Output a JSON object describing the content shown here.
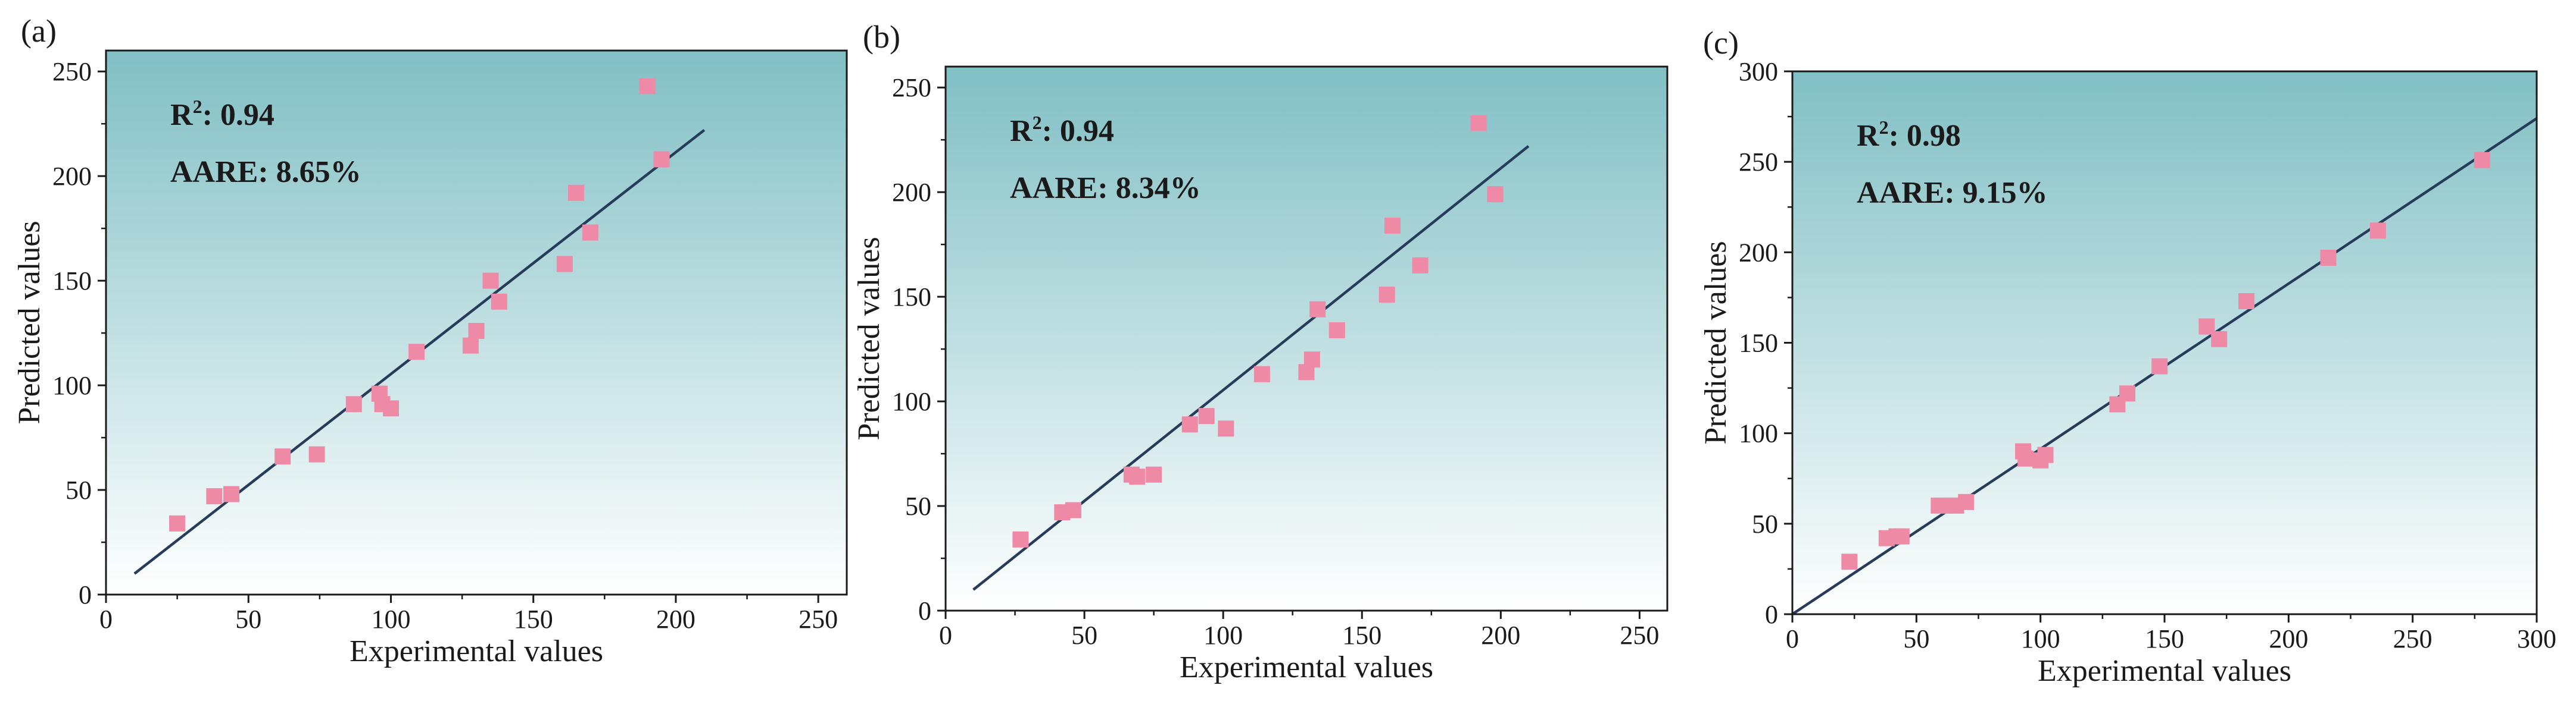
{
  "chart_data": [
    {
      "type": "scatter",
      "panel": "(a)",
      "xlabel": "Experimental values",
      "ylabel": "Predicted values",
      "xlim": [
        0,
        260
      ],
      "ylim": [
        0,
        260
      ],
      "xticks": [
        "0",
        "50",
        "100",
        "150",
        "200",
        "250"
      ],
      "yticks": [
        "0",
        "50",
        "100",
        "150",
        "200",
        "250"
      ],
      "annotations": {
        "r2_label": "R",
        "r2_value": "0.94",
        "aare": "AARE: 8.65%"
      },
      "fit_line": {
        "x": [
          10,
          210
        ],
        "y": [
          10,
          222
        ]
      },
      "series": [
        {
          "name": "data",
          "x": [
            25,
            38,
            44,
            62,
            74,
            87,
            96,
            97,
            100,
            109,
            128,
            130,
            135,
            138,
            161,
            165,
            170,
            190,
            195
          ],
          "y": [
            34,
            47,
            48,
            66,
            67,
            91,
            96,
            91,
            89,
            116,
            119,
            126,
            150,
            140,
            158,
            192,
            173,
            243,
            208
          ]
        }
      ]
    },
    {
      "type": "scatter",
      "panel": "(b)",
      "xlabel": "Experimental values",
      "ylabel": "Predicted values",
      "xlim": [
        0,
        260
      ],
      "ylim": [
        0,
        260
      ],
      "xticks": [
        "0",
        "50",
        "100",
        "150",
        "200",
        "250"
      ],
      "yticks": [
        "0",
        "50",
        "100",
        "150",
        "200",
        "250"
      ],
      "annotations": {
        "r2_label": "R",
        "r2_value": "0.94",
        "aare": "AARE: 8.34%"
      },
      "fit_line": {
        "x": [
          10,
          210
        ],
        "y": [
          10,
          222
        ]
      },
      "series": [
        {
          "name": "data",
          "x": [
            27,
            42,
            46,
            67,
            69,
            75,
            88,
            94,
            101,
            114,
            130,
            132,
            134,
            141,
            159,
            161,
            171,
            192,
            198
          ],
          "y": [
            34,
            47,
            48,
            65,
            64,
            65,
            89,
            93,
            87,
            113,
            114,
            120,
            144,
            134,
            151,
            184,
            165,
            233,
            199
          ]
        }
      ]
    },
    {
      "type": "scatter",
      "panel": "(c)",
      "xlabel": "Experimental values",
      "ylabel": "Predicted values",
      "xlim": [
        0,
        300
      ],
      "ylim": [
        0,
        300
      ],
      "xticks": [
        "0",
        "50",
        "100",
        "150",
        "200",
        "250",
        "300"
      ],
      "yticks": [
        "0",
        "50",
        "100",
        "150",
        "200",
        "250",
        "300"
      ],
      "annotations": {
        "r2_label": "R",
        "r2_value": "0.98",
        "aare": "AARE: 9.15%"
      },
      "fit_line": {
        "x": [
          0,
          300
        ],
        "y": [
          0,
          274
        ]
      },
      "series": [
        {
          "name": "data",
          "x": [
            23,
            38,
            42,
            44,
            59,
            63,
            66,
            70,
            93,
            94,
            100,
            102,
            131,
            135,
            148,
            167,
            172,
            183,
            216,
            236,
            278
          ],
          "y": [
            29,
            42,
            43,
            43,
            60,
            60,
            60,
            62,
            90,
            86,
            85,
            88,
            116,
            122,
            137,
            159,
            152,
            173,
            197,
            212,
            251
          ]
        }
      ]
    }
  ],
  "colors": {
    "gradient_top": "#80bfc4",
    "gradient_bottom": "#ffffff",
    "marker": "#ef8aa6",
    "fit_line": "#263c5a",
    "axis": "#1a1a1a"
  }
}
